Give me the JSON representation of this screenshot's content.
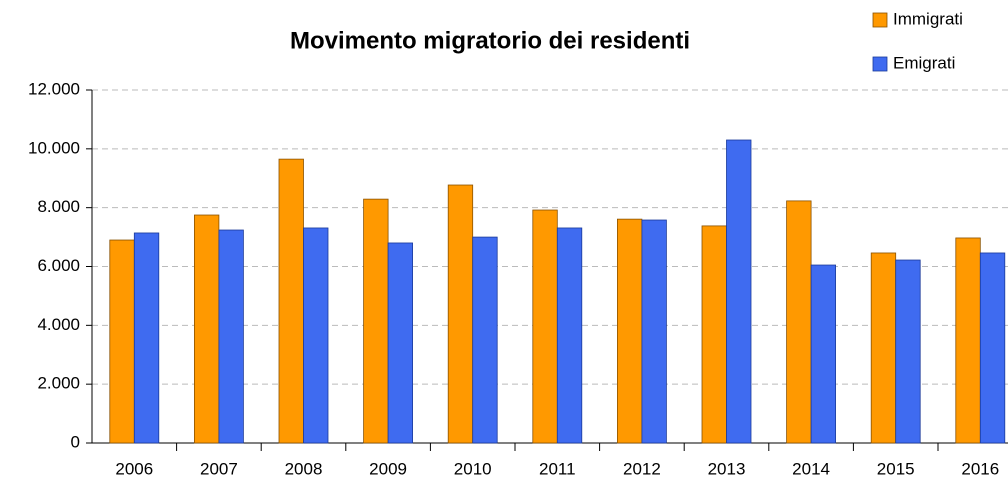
{
  "chart_data": {
    "type": "bar",
    "title": "Movimento migratorio dei residenti",
    "categories": [
      "2006",
      "2007",
      "2008",
      "2009",
      "2010",
      "2011",
      "2012",
      "2013",
      "2014",
      "2015",
      "2016"
    ],
    "series": [
      {
        "name": "Immigrati",
        "color": "#ff9900",
        "values": [
          6900,
          7750,
          9650,
          8290,
          8770,
          7920,
          7610,
          7380,
          8230,
          6460,
          6970
        ]
      },
      {
        "name": "Emigrati",
        "color": "#3f6bf0",
        "values": [
          7140,
          7240,
          7310,
          6800,
          7000,
          7310,
          7580,
          10300,
          6050,
          6220,
          6460
        ]
      }
    ],
    "ylim": [
      0,
      12000
    ],
    "yticks": [
      0,
      {
        "value": 2000,
        "label": "2.000"
      },
      {
        "value": 4000,
        "label": "4.000"
      },
      {
        "value": 6000,
        "label": "6.000"
      },
      {
        "value": 8000,
        "label": "8.000"
      },
      {
        "value": 10000,
        "label": "10.000"
      },
      {
        "value": 12000,
        "label": "12.000"
      }
    ],
    "grid": true,
    "legend": "top-right"
  }
}
